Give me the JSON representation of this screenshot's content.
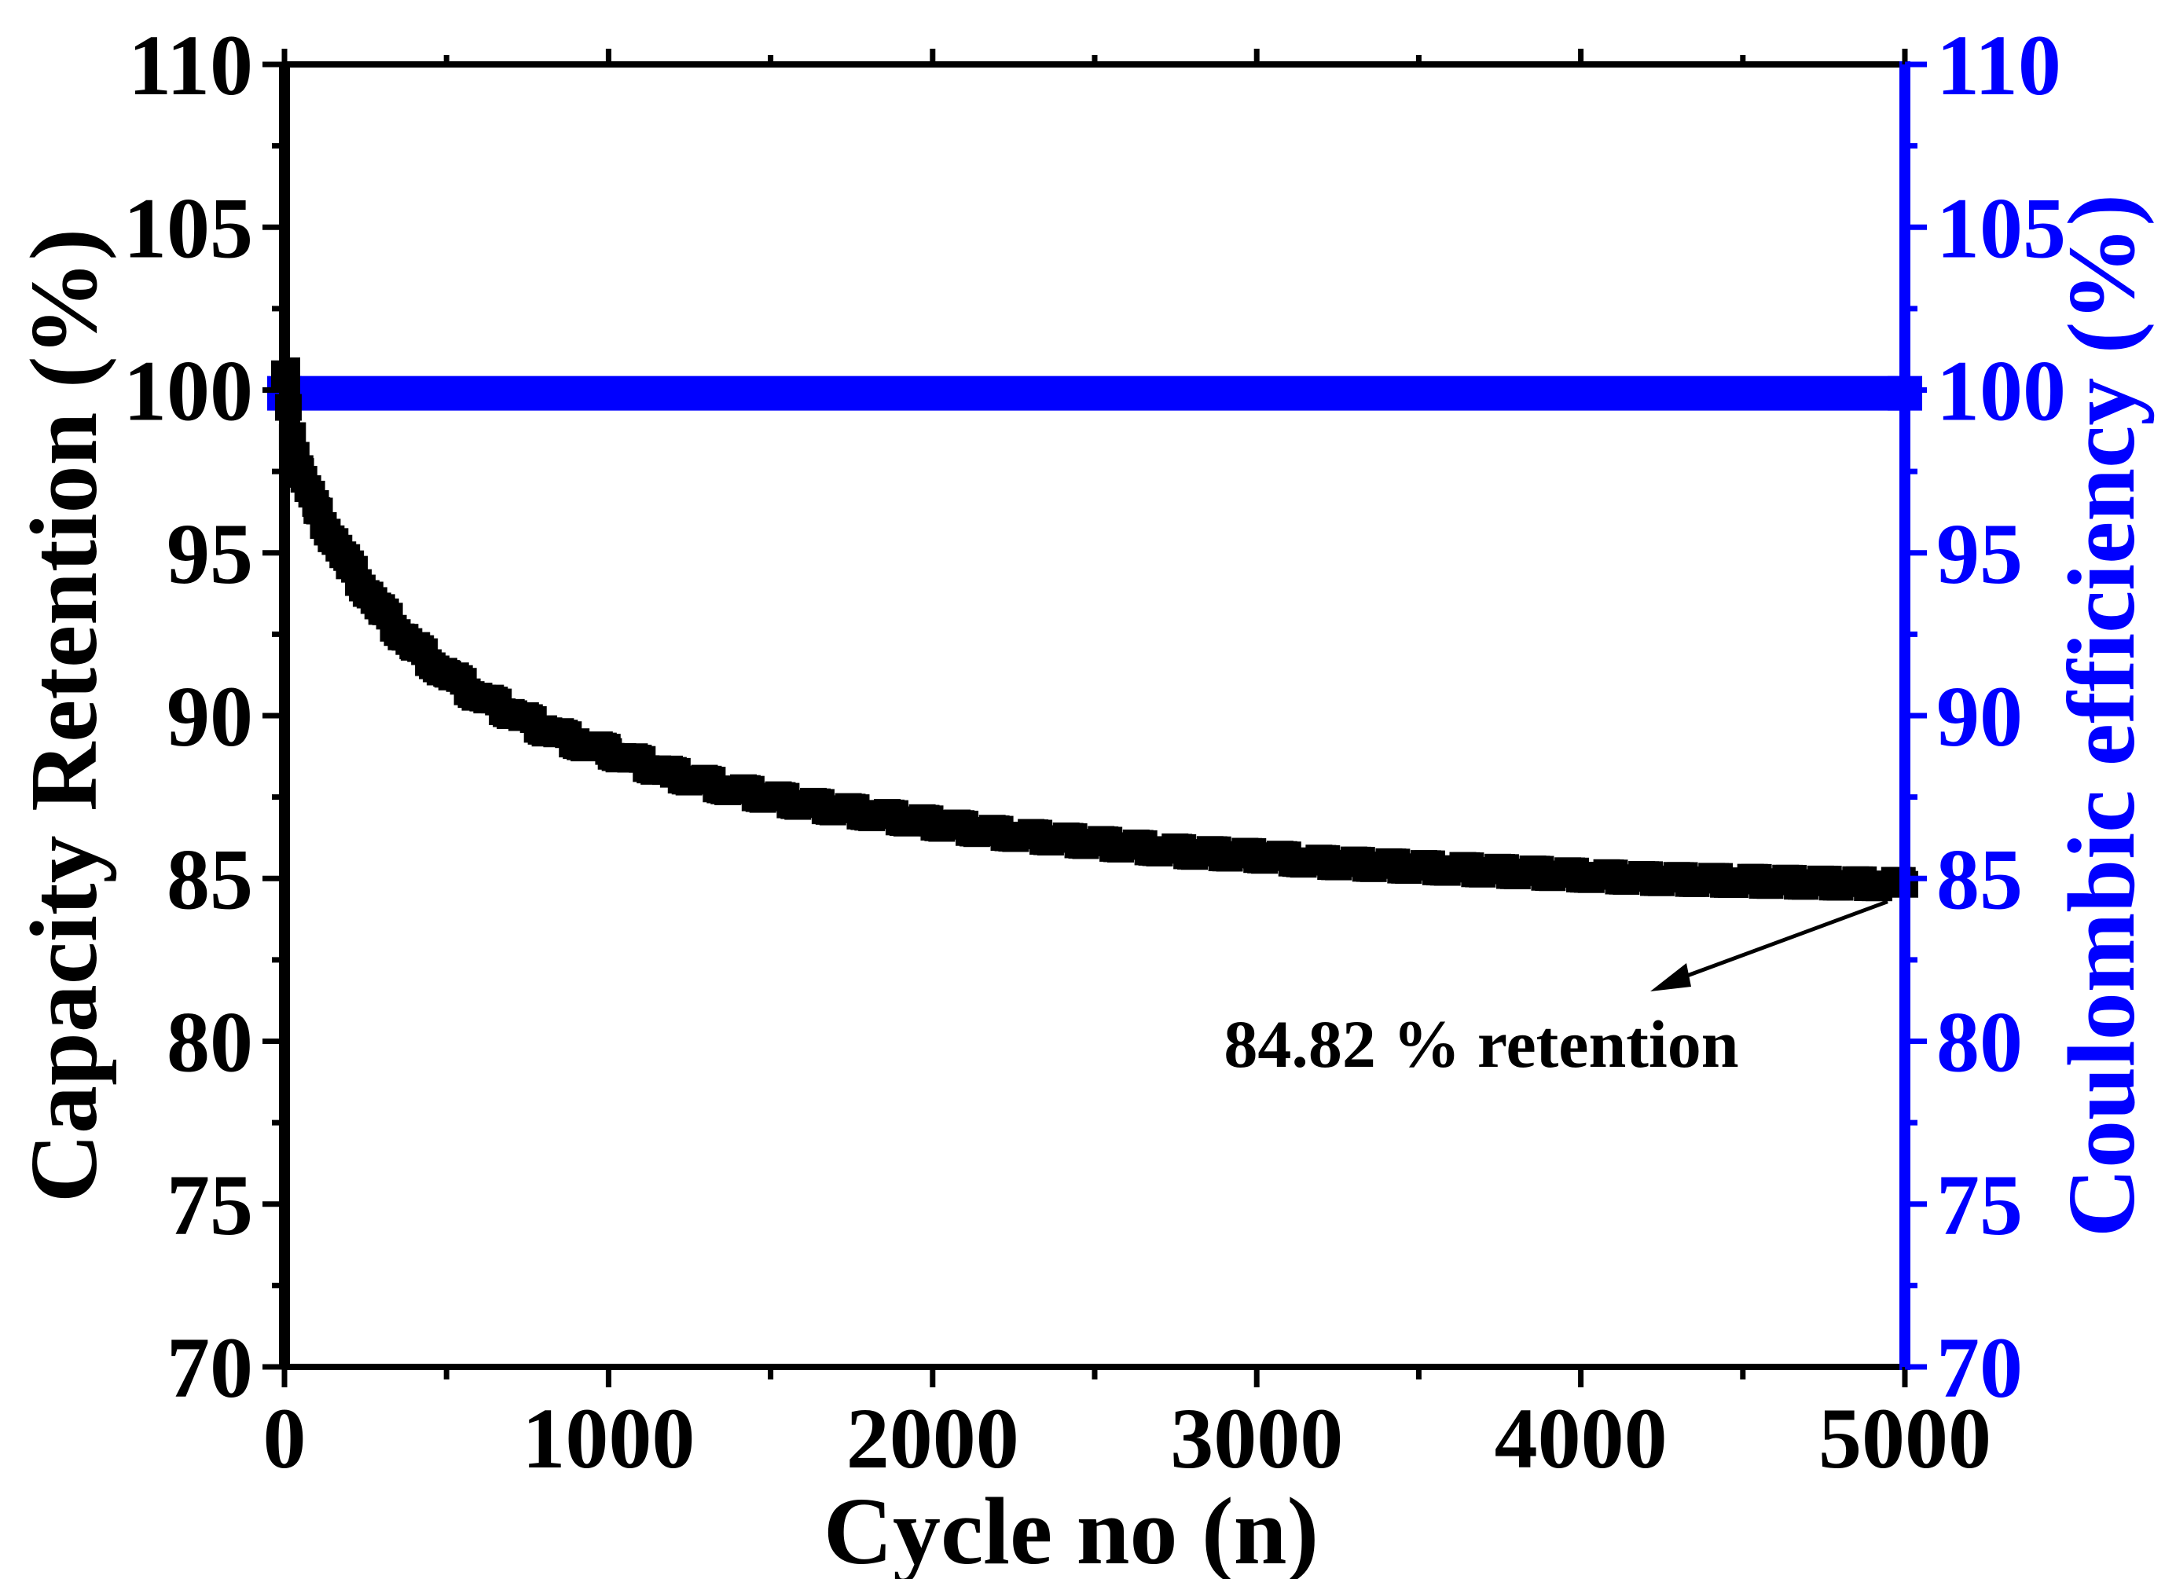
{
  "chart_data": {
    "type": "scatter",
    "title": "",
    "xlabel": "Cycle no (n)",
    "ylabel_left": "Capacity Retention (%)",
    "ylabel_right": "Coulombic efficiency (%)",
    "xlim": [
      0,
      5000
    ],
    "ylim_left": [
      70,
      110
    ],
    "ylim_right": [
      70,
      110
    ],
    "x_ticks": [
      "0",
      "1000",
      "2000",
      "3000",
      "4000",
      "5000"
    ],
    "y_ticks_left": [
      "70",
      "75",
      "80",
      "85",
      "90",
      "95",
      "100",
      "105",
      "110"
    ],
    "y_ticks_right": [
      "70",
      "75",
      "80",
      "85",
      "90",
      "95",
      "100",
      "105",
      "110"
    ],
    "grid": false,
    "series": [
      {
        "name": "Capacity Retention",
        "axis": "left",
        "color": "#000000",
        "marker": "square",
        "x": [
          0,
          25,
          50,
          100,
          200,
          300,
          400,
          500,
          600,
          700,
          800,
          900,
          1000,
          1200,
          1400,
          1600,
          1800,
          2000,
          2200,
          2400,
          2600,
          2800,
          3000,
          3200,
          3400,
          3600,
          3800,
          4000,
          4200,
          4400,
          4600,
          4800,
          5000
        ],
        "values": [
          100.5,
          98.6,
          97.5,
          96.3,
          94.6,
          93.2,
          92.1,
          91.3,
          90.6,
          90.1,
          89.6,
          89.2,
          88.9,
          88.2,
          87.7,
          87.3,
          87.0,
          86.7,
          86.4,
          86.2,
          86.0,
          85.8,
          85.7,
          85.5,
          85.4,
          85.3,
          85.2,
          85.1,
          85.0,
          84.95,
          84.9,
          84.85,
          84.82
        ]
      },
      {
        "name": "Coulombic efficiency",
        "axis": "right",
        "color": "#0000ff",
        "marker": "square",
        "x": [
          0,
          5000
        ],
        "values": [
          99.9,
          99.9
        ]
      }
    ],
    "annotations": [
      {
        "text": "84.82 % retention",
        "x": 5000,
        "y": 84.82,
        "arrow": true
      }
    ],
    "colors": {
      "left_axis": "#000000",
      "right_axis": "#0000ff"
    }
  }
}
